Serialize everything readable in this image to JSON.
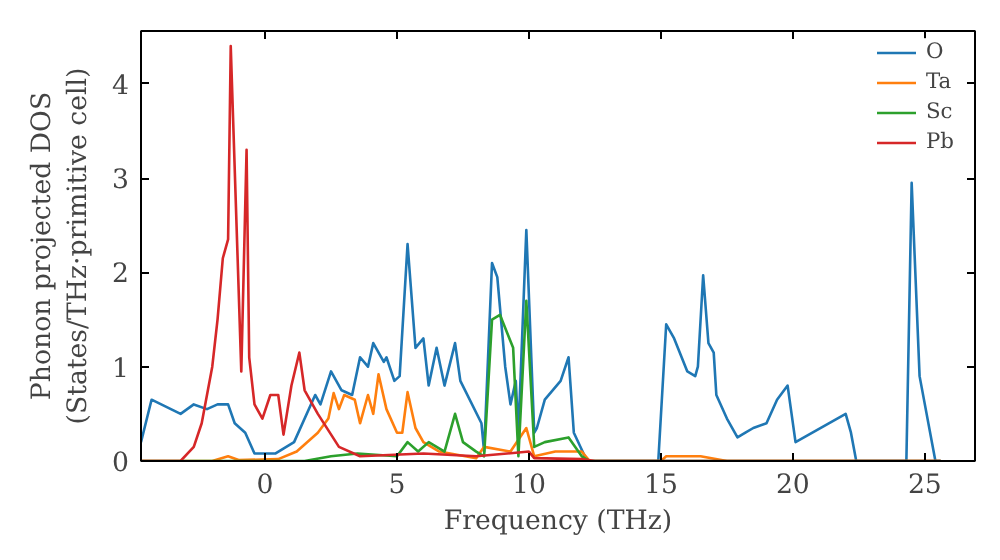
{
  "chart_data": {
    "type": "line",
    "xlabel": "Frequency (THz)",
    "ylabel": "Phonon projected DOS\n(States/THz·primitive cell)",
    "xlim": [
      -4.7,
      26.9
    ],
    "ylim": [
      0,
      4.56
    ],
    "xticks": [
      0,
      5,
      10,
      15,
      20,
      25
    ],
    "yticks": [
      0,
      1,
      2,
      3,
      4
    ],
    "grid": false,
    "legend": "top right",
    "series": [
      {
        "name": "O",
        "color": "#1f77b4",
        "x": [
          -4.7,
          -4.3,
          -3.2,
          -2.7,
          -2.2,
          -1.8,
          -1.4,
          -1.15,
          -0.75,
          -0.4,
          0.4,
          1.1,
          1.9,
          2.1,
          2.5,
          2.9,
          3.3,
          3.6,
          3.9,
          4.1,
          4.5,
          4.6,
          4.9,
          5.1,
          5.4,
          5.7,
          6.0,
          6.2,
          6.5,
          6.8,
          7.2,
          7.4,
          8.2,
          8.3,
          8.6,
          8.8,
          9.1,
          9.3,
          9.5,
          9.6,
          9.9,
          10.2,
          10.3,
          10.6,
          11.2,
          11.5,
          11.7,
          12.2,
          14.9,
          15.2,
          15.5,
          16.0,
          16.3,
          16.4,
          16.6,
          16.8,
          17.0,
          17.1,
          17.5,
          17.9,
          18.2,
          18.5,
          19.0,
          19.4,
          19.8,
          20.1,
          22.0,
          22.2,
          22.4,
          24.3,
          24.5,
          24.8,
          25.4,
          25.6
        ],
        "values": [
          0.2,
          0.65,
          0.5,
          0.6,
          0.55,
          0.6,
          0.6,
          0.4,
          0.3,
          0.08,
          0.08,
          0.2,
          0.7,
          0.6,
          0.95,
          0.75,
          0.7,
          1.1,
          1.0,
          1.25,
          1.05,
          1.1,
          0.85,
          0.9,
          2.3,
          1.2,
          1.3,
          0.8,
          1.2,
          0.8,
          1.25,
          0.85,
          0.4,
          0.1,
          2.1,
          1.95,
          1.0,
          0.6,
          0.85,
          0.3,
          2.45,
          0.3,
          0.35,
          0.65,
          0.85,
          1.1,
          0.3,
          0,
          0,
          1.45,
          1.3,
          0.95,
          0.9,
          1.0,
          1.97,
          1.25,
          1.15,
          0.7,
          0.45,
          0.25,
          0.3,
          0.35,
          0.4,
          0.65,
          0.8,
          0.2,
          0.5,
          0.3,
          0,
          0,
          2.95,
          0.9,
          0,
          0
        ]
      },
      {
        "name": "Ta",
        "color": "#ff7f0e",
        "x": [
          -4.7,
          -2.0,
          -1.4,
          -1.0,
          0.5,
          1.2,
          2.0,
          2.4,
          2.6,
          2.8,
          3.0,
          3.4,
          3.6,
          3.9,
          4.1,
          4.3,
          4.6,
          5.0,
          5.2,
          5.4,
          5.7,
          6.0,
          6.6,
          8.0,
          8.3,
          9.3,
          9.9,
          10.2,
          11.0,
          12.0,
          12.3,
          15.0,
          15.2,
          16.5,
          17.5,
          25.6
        ],
        "values": [
          0,
          0,
          0.05,
          0.01,
          0.02,
          0.1,
          0.3,
          0.45,
          0.72,
          0.55,
          0.7,
          0.65,
          0.4,
          0.7,
          0.5,
          0.92,
          0.55,
          0.3,
          0.3,
          0.73,
          0.35,
          0.2,
          0.1,
          0.03,
          0.15,
          0.1,
          0.35,
          0.05,
          0.1,
          0.1,
          0,
          0,
          0.05,
          0.05,
          0,
          0
        ]
      },
      {
        "name": "Sc",
        "color": "#2ca02c",
        "x": [
          -4.7,
          1.5,
          2.5,
          3.5,
          5.0,
          5.4,
          5.8,
          6.2,
          6.8,
          7.2,
          7.5,
          8.0,
          8.3,
          8.6,
          8.9,
          9.4,
          9.6,
          9.9,
          10.2,
          10.6,
          11.5,
          12.0,
          12.3,
          25.6
        ],
        "values": [
          0,
          0,
          0.05,
          0.08,
          0.05,
          0.2,
          0.1,
          0.2,
          0.1,
          0.5,
          0.2,
          0.1,
          0.05,
          1.5,
          1.55,
          1.2,
          0.05,
          1.7,
          0.15,
          0.2,
          0.25,
          0.05,
          0,
          0
        ]
      },
      {
        "name": "Pb",
        "color": "#d62728",
        "x": [
          -4.7,
          -3.2,
          -2.7,
          -2.4,
          -2.0,
          -1.8,
          -1.6,
          -1.4,
          -1.3,
          -0.9,
          -0.7,
          -0.6,
          -0.4,
          -0.1,
          0.2,
          0.5,
          0.7,
          1.0,
          1.3,
          1.5,
          2.0,
          2.8,
          3.6,
          6.0,
          8.0,
          10.0,
          10.2,
          12.0,
          12.5,
          25.6
        ],
        "values": [
          0,
          0,
          0.15,
          0.4,
          1.0,
          1.5,
          2.15,
          2.35,
          4.4,
          0.95,
          3.3,
          1.1,
          0.6,
          0.45,
          0.7,
          0.7,
          0.28,
          0.8,
          1.15,
          0.75,
          0.5,
          0.15,
          0.05,
          0.08,
          0.05,
          0.1,
          0.03,
          0.02,
          0,
          0
        ]
      }
    ]
  }
}
